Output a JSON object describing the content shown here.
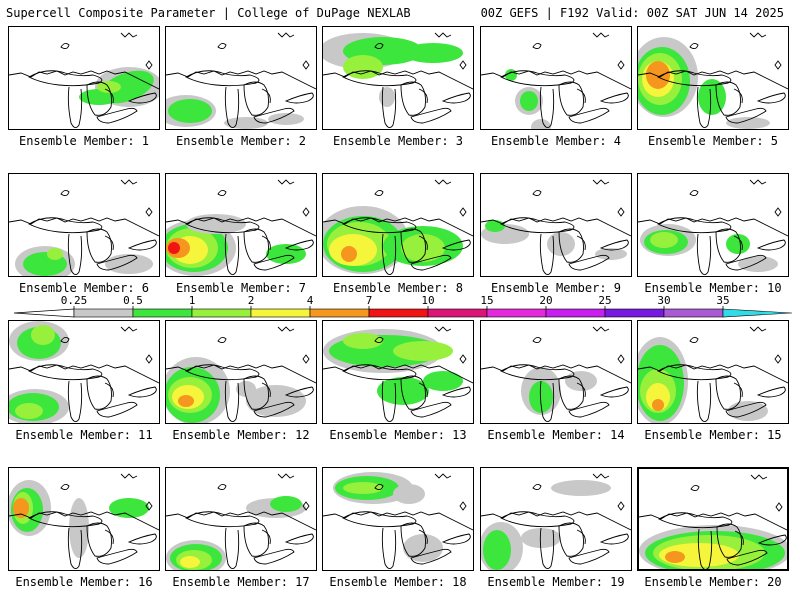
{
  "header": {
    "title": "Supercell Composite Parameter | College of DuPage NEXLAB",
    "run_info": "00Z GEFS | F192 Valid: 00Z SAT JUN 14 2025"
  },
  "legend": {
    "ticks": [
      "0.25",
      "0.5",
      "1",
      "2",
      "4",
      "7",
      "10",
      "15",
      "20",
      "25",
      "30",
      "35"
    ],
    "colors": [
      "#c8c8c8",
      "#3ce63c",
      "#96f03c",
      "#f5f53c",
      "#f5961e",
      "#f01414",
      "#dc1478",
      "#e628dc",
      "#c81ef0",
      "#7819e1",
      "#aa5ad2",
      "#32dce6"
    ]
  },
  "panels": [
    {
      "label": "Ensemble Member: 1"
    },
    {
      "label": "Ensemble Member: 2"
    },
    {
      "label": "Ensemble Member: 3"
    },
    {
      "label": "Ensemble Member: 4"
    },
    {
      "label": "Ensemble Member: 5"
    },
    {
      "label": "Ensemble Member: 6"
    },
    {
      "label": "Ensemble Member: 7"
    },
    {
      "label": "Ensemble Member: 8"
    },
    {
      "label": "Ensemble Member: 9"
    },
    {
      "label": "Ensemble Member: 10"
    },
    {
      "label": "Ensemble Member: 11"
    },
    {
      "label": "Ensemble Member: 12"
    },
    {
      "label": "Ensemble Member: 13"
    },
    {
      "label": "Ensemble Member: 14"
    },
    {
      "label": "Ensemble Member: 15"
    },
    {
      "label": "Ensemble Member: 16"
    },
    {
      "label": "Ensemble Member: 17"
    },
    {
      "label": "Ensemble Member: 18"
    },
    {
      "label": "Ensemble Member: 19"
    },
    {
      "label": "Ensemble Member: 20"
    }
  ]
}
